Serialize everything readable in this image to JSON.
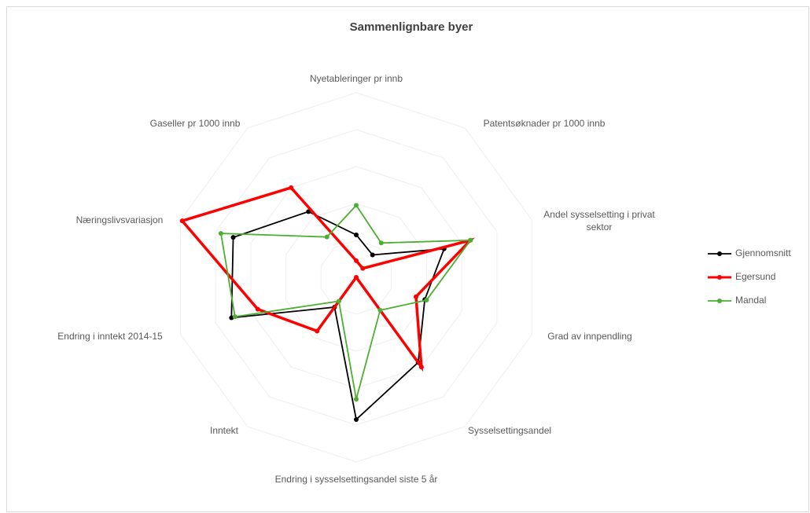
{
  "chart_data": {
    "type": "radar",
    "title": "Sammenlignbare byer",
    "categories": [
      "Nyetableringer pr innb",
      "Patentsøknader pr 1000 innb",
      "Andel sysselsetting i privat sektor",
      "Grad av innpendling",
      "Sysselsettingsandel",
      "Endring i sysselsettingsandel siste 5 år",
      "Inntekt",
      "Endring i inntekt 2014-15",
      "Næringslivsvariasjon",
      "Gaseller pr 1000 innb"
    ],
    "series": [
      {
        "name": "Gjennomsnitt",
        "color": "#000000",
        "values": [
          23,
          15,
          50,
          39,
          57,
          77,
          20,
          71,
          70,
          44
        ]
      },
      {
        "name": "Egersund",
        "color": "#ff0000",
        "values": [
          9,
          6,
          65,
          34,
          60,
          0,
          36,
          56,
          99,
          60
        ]
      },
      {
        "name": "Mandal",
        "color": "#4caf32",
        "values": [
          39,
          23,
          65,
          40,
          22,
          66,
          16,
          69,
          77,
          27
        ]
      }
    ],
    "rlim": [
      0,
      100
    ],
    "rticks": [
      20,
      40,
      60,
      80,
      100
    ],
    "grid": true,
    "legend": "right"
  }
}
